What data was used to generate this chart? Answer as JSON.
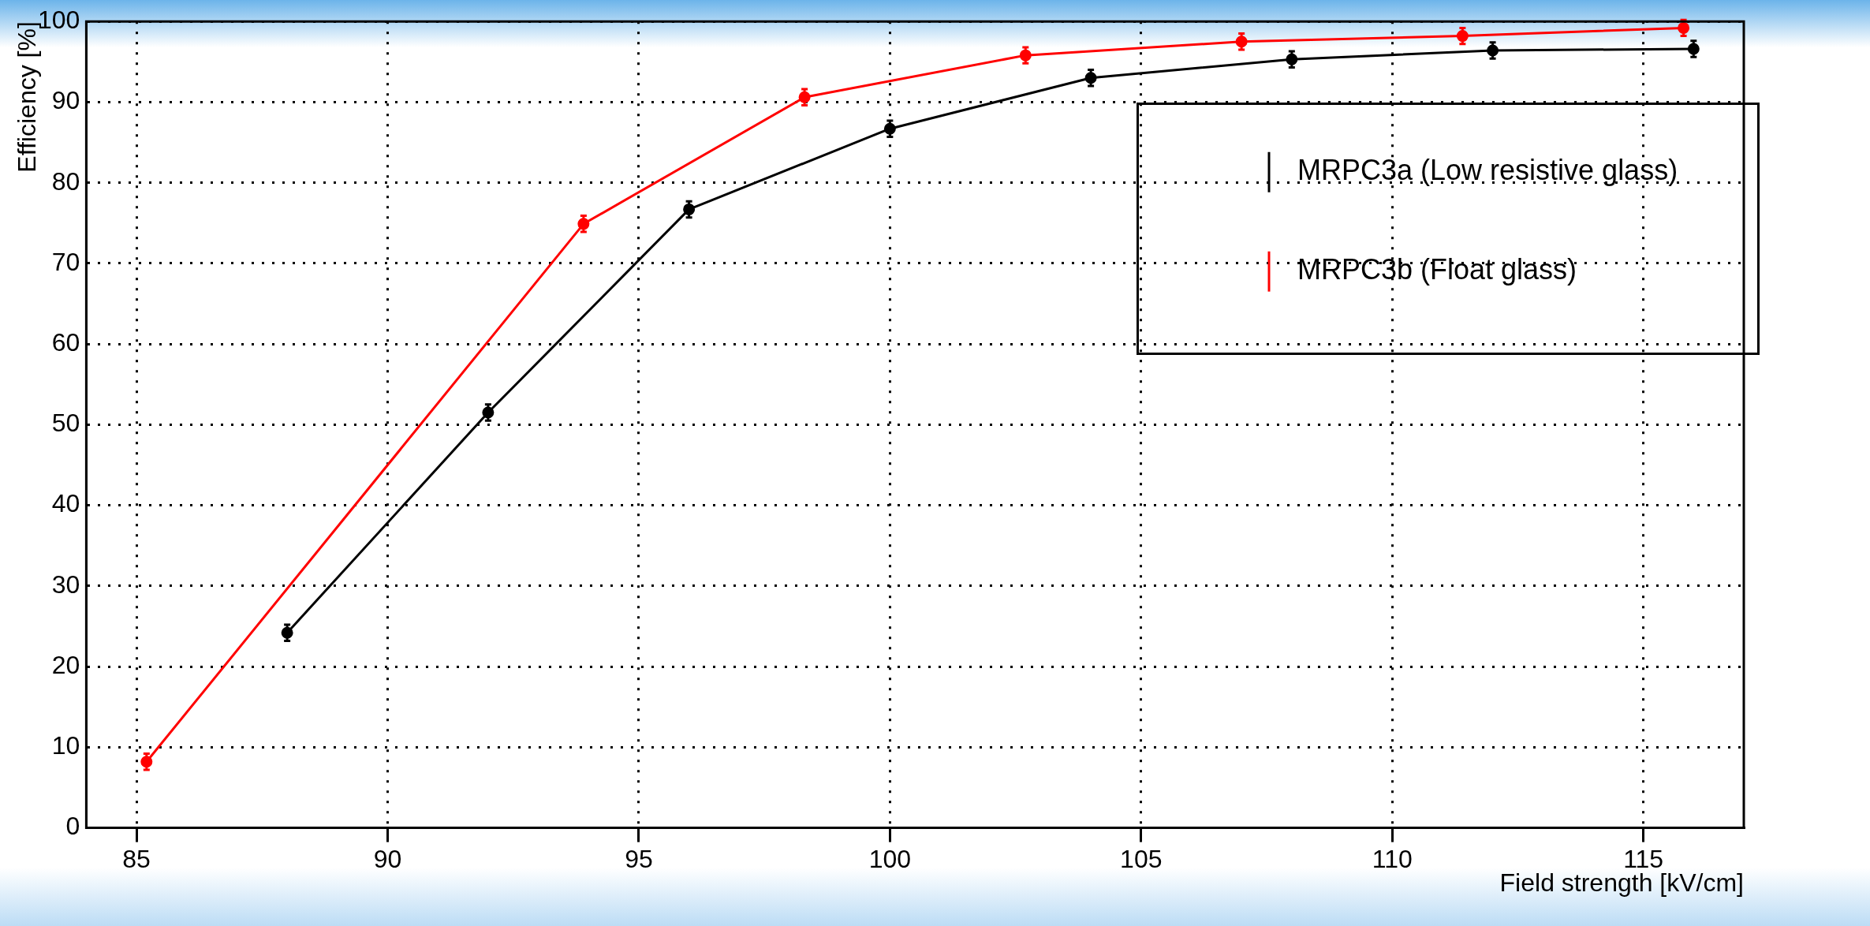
{
  "chart_data": {
    "type": "line",
    "xlabel": "Field strength [kV/cm]",
    "ylabel": "Efficiency [%]",
    "xlim": [
      84,
      117
    ],
    "xticks": [
      85,
      90,
      95,
      100,
      105,
      110,
      115
    ],
    "ylim": [
      0,
      100
    ],
    "yticks": [
      0,
      10,
      20,
      30,
      40,
      50,
      60,
      70,
      80,
      90,
      100
    ],
    "grid": true,
    "legend": "top right",
    "marker": "circle",
    "line_style": "solid",
    "series": [
      {
        "name": "MRPC3a (Low resistive glass)",
        "color": "#000000",
        "x": [
          88,
          92,
          96,
          100,
          104,
          108,
          112,
          116
        ],
        "values": [
          24.2,
          51.5,
          76.7,
          86.7,
          93.0,
          95.3,
          96.4,
          96.6
        ],
        "errors": [
          1,
          1,
          1,
          1,
          1,
          1,
          1,
          1
        ]
      },
      {
        "name": "MRPC3b (Float glass)",
        "color": "#ff0000",
        "x": [
          85.2,
          93.9,
          98.3,
          102.7,
          107.0,
          111.4,
          115.8
        ],
        "values": [
          8.2,
          74.9,
          90.6,
          95.8,
          97.5,
          98.2,
          99.2
        ],
        "errors": [
          1,
          1,
          1,
          1,
          1,
          1,
          1
        ]
      }
    ]
  }
}
